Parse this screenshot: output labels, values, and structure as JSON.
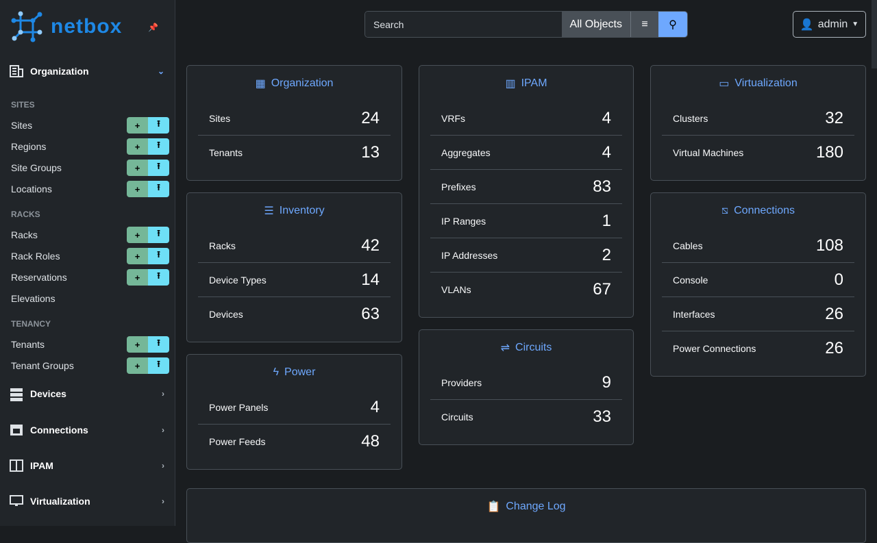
{
  "brand": {
    "name": "netbox",
    "accent": "#1e88e5"
  },
  "sidebar": {
    "sections": [
      {
        "label": "Organization",
        "icon": "building-icon",
        "expanded": true
      },
      {
        "label": "Devices",
        "icon": "server-icon"
      },
      {
        "label": "Connections",
        "icon": "ethernet-icon"
      },
      {
        "label": "IPAM",
        "icon": "counter-icon"
      },
      {
        "label": "Virtualization",
        "icon": "monitor-icon"
      }
    ],
    "groups": [
      {
        "label": "SITES",
        "items": [
          "Sites",
          "Regions",
          "Site Groups",
          "Locations"
        ]
      },
      {
        "label": "RACKS",
        "items": [
          "Racks",
          "Rack Roles",
          "Reservations",
          "Elevations"
        ]
      },
      {
        "label": "TENANCY",
        "items": [
          "Tenants",
          "Tenant Groups"
        ]
      }
    ],
    "add_icon": "+",
    "import_icon": "⭱"
  },
  "search": {
    "placeholder": "Search",
    "scope": "All Objects"
  },
  "user": {
    "name": "admin"
  },
  "cards": {
    "organization": {
      "title": "Organization",
      "rows": [
        [
          "Sites",
          "24"
        ],
        [
          "Tenants",
          "13"
        ]
      ]
    },
    "inventory": {
      "title": "Inventory",
      "rows": [
        [
          "Racks",
          "42"
        ],
        [
          "Device Types",
          "14"
        ],
        [
          "Devices",
          "63"
        ]
      ]
    },
    "power": {
      "title": "Power",
      "rows": [
        [
          "Power Panels",
          "4"
        ],
        [
          "Power Feeds",
          "48"
        ]
      ]
    },
    "ipam": {
      "title": "IPAM",
      "rows": [
        [
          "VRFs",
          "4"
        ],
        [
          "Aggregates",
          "4"
        ],
        [
          "Prefixes",
          "83"
        ],
        [
          "IP Ranges",
          "1"
        ],
        [
          "IP Addresses",
          "2"
        ],
        [
          "VLANs",
          "67"
        ]
      ]
    },
    "circuits": {
      "title": "Circuits",
      "rows": [
        [
          "Providers",
          "9"
        ],
        [
          "Circuits",
          "33"
        ]
      ]
    },
    "virtualization": {
      "title": "Virtualization",
      "rows": [
        [
          "Clusters",
          "32"
        ],
        [
          "Virtual Machines",
          "180"
        ]
      ]
    },
    "connections": {
      "title": "Connections",
      "rows": [
        [
          "Cables",
          "108"
        ],
        [
          "Console",
          "0"
        ],
        [
          "Interfaces",
          "26"
        ],
        [
          "Power Connections",
          "26"
        ]
      ]
    },
    "changelog": {
      "title": "Change Log"
    }
  }
}
